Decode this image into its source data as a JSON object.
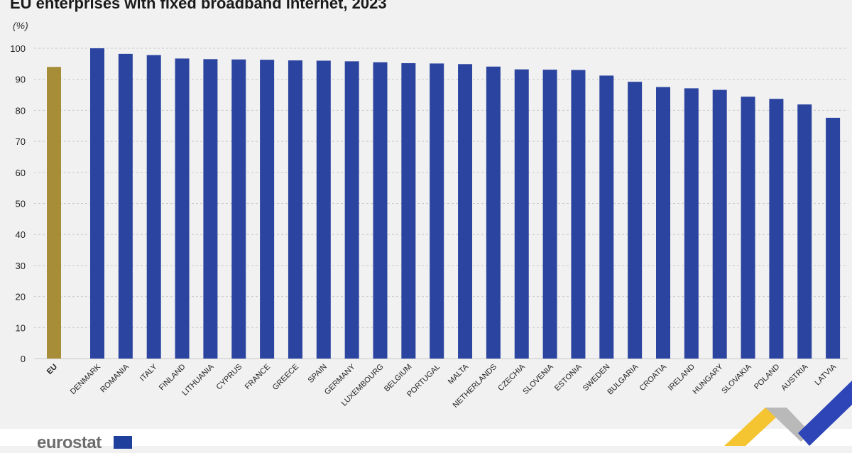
{
  "title": "EU enterprises with fixed broadband internet, 2023",
  "unit_label": "(%)",
  "logo": {
    "text": "eurostat"
  },
  "colors": {
    "eu_bar": "#a88d38",
    "country_bar": "#2b44a0",
    "gridline": "#c9c9c9",
    "axis_text": "#222222",
    "background": "#f1f1f1",
    "corner_yellow": "#f5c431",
    "corner_blue": "#2e45b8",
    "corner_gray": "#b9b9b9"
  },
  "chart_data": {
    "type": "bar",
    "title": "EU enterprises with fixed broadband internet, 2023",
    "ylabel": "(%)",
    "xlabel": "",
    "ylim": [
      0,
      100
    ],
    "yticks": [
      0,
      10,
      20,
      30,
      40,
      50,
      60,
      70,
      80,
      90,
      100
    ],
    "grid": true,
    "categories": [
      "EU",
      "DENMARK",
      "ROMANIA",
      "ITALY",
      "FINLAND",
      "LITHUANIA",
      "CYPRUS",
      "FRANCE",
      "GREECE",
      "SPAIN",
      "GERMANY",
      "LUXEMBOURG",
      "BELGIUM",
      "PORTUGAL",
      "MALTA",
      "NETHERLANDS",
      "CZECHIA",
      "SLOVENIA",
      "ESTONIA",
      "SWEDEN",
      "BULGARIA",
      "CROATIA",
      "IRELAND",
      "HUNGARY",
      "SLOVAKIA",
      "POLAND",
      "AUSTRIA",
      "LATVIA"
    ],
    "values": [
      94.0,
      100.0,
      98.2,
      97.8,
      96.7,
      96.5,
      96.4,
      96.3,
      96.1,
      96.0,
      95.8,
      95.5,
      95.2,
      95.1,
      94.9,
      94.1,
      93.2,
      93.1,
      93.0,
      91.2,
      89.2,
      87.5,
      87.1,
      86.6,
      84.4,
      83.7,
      81.9,
      77.6
    ],
    "highlight": [
      "EU"
    ]
  }
}
